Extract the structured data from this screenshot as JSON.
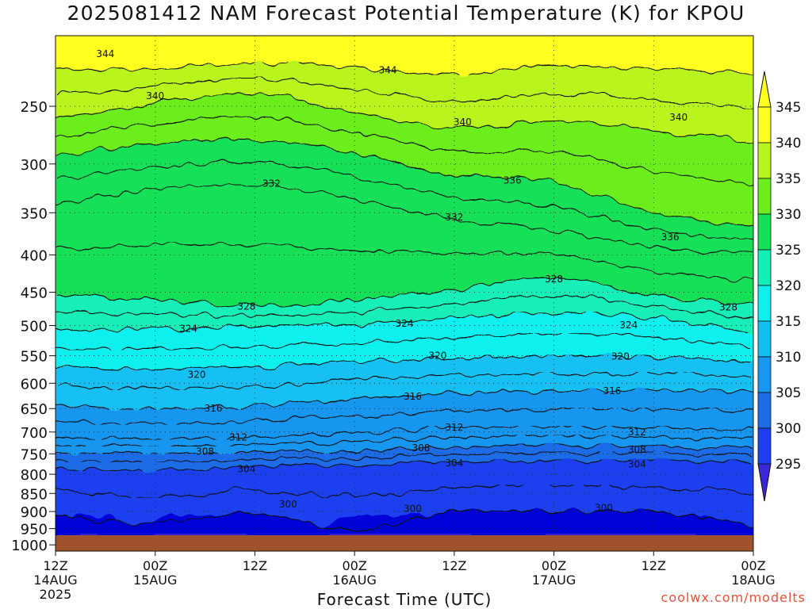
{
  "chart_data": {
    "type": "contour",
    "title": "2025081412 NAM Forecast Potential Temperature (K) for KPOU",
    "xlabel": "Forecast Time (UTC)",
    "ylabel": "",
    "y_scale": "log-pressure",
    "ylim": [
      1020,
      200
    ],
    "y_ticks": [
      250,
      300,
      350,
      400,
      450,
      500,
      550,
      600,
      650,
      700,
      750,
      800,
      850,
      900,
      950,
      1000
    ],
    "x_ticks": [
      {
        "hour": 0,
        "label": "12Z",
        "sub": "14AUG",
        "sub2": "2025"
      },
      {
        "hour": 12,
        "label": "00Z",
        "sub": "15AUG",
        "sub2": ""
      },
      {
        "hour": 24,
        "label": "12Z",
        "sub": "",
        "sub2": ""
      },
      {
        "hour": 36,
        "label": "00Z",
        "sub": "16AUG",
        "sub2": ""
      },
      {
        "hour": 48,
        "label": "12Z",
        "sub": "",
        "sub2": ""
      },
      {
        "hour": 60,
        "label": "00Z",
        "sub": "17AUG",
        "sub2": ""
      },
      {
        "hour": 72,
        "label": "12Z",
        "sub": "",
        "sub2": ""
      },
      {
        "hour": 84,
        "label": "00Z",
        "sub": "18AUG",
        "sub2": ""
      }
    ],
    "xlim_hours": [
      0,
      84
    ],
    "colorbar": {
      "levels": [
        295,
        300,
        305,
        310,
        315,
        320,
        325,
        330,
        335,
        340,
        345
      ],
      "colors": [
        "#0000d8",
        "#1d3ff0",
        "#1f6ce8",
        "#1996ee",
        "#13c0f2",
        "#0ff0ee",
        "#12f0b8",
        "#16e058",
        "#6ced1e",
        "#b9f51e",
        "#ffff20"
      ]
    },
    "series": [
      {
        "level": 344,
        "pressure_by_hour": [
          [
            0,
            223
          ],
          [
            12,
            222
          ],
          [
            24,
            218
          ],
          [
            36,
            221
          ],
          [
            48,
            226
          ],
          [
            60,
            220
          ],
          [
            72,
            222
          ],
          [
            84,
            225
          ]
        ]
      },
      {
        "level": 340,
        "pressure_by_hour": [
          [
            0,
            260
          ],
          [
            12,
            248
          ],
          [
            24,
            240
          ],
          [
            36,
            255
          ],
          [
            48,
            268
          ],
          [
            60,
            262
          ],
          [
            72,
            270
          ],
          [
            84,
            280
          ]
        ]
      },
      {
        "level": 336,
        "pressure_by_hour": [
          [
            0,
            292
          ],
          [
            12,
            282
          ],
          [
            24,
            278
          ],
          [
            36,
            290
          ],
          [
            48,
            310
          ],
          [
            60,
            318
          ],
          [
            72,
            350
          ],
          [
            84,
            365
          ]
        ]
      },
      {
        "level": 332,
        "pressure_by_hour": [
          [
            0,
            340
          ],
          [
            12,
            325
          ],
          [
            24,
            320
          ],
          [
            36,
            335
          ],
          [
            48,
            358
          ],
          [
            60,
            370
          ],
          [
            72,
            390
          ],
          [
            84,
            400
          ]
        ]
      },
      {
        "level": 328,
        "pressure_by_hour": [
          [
            0,
            455
          ],
          [
            12,
            460
          ],
          [
            24,
            470
          ],
          [
            36,
            462
          ],
          [
            48,
            445
          ],
          [
            60,
            430
          ],
          [
            72,
            455
          ],
          [
            84,
            470
          ]
        ]
      },
      {
        "level": 324,
        "pressure_by_hour": [
          [
            0,
            505
          ],
          [
            12,
            505
          ],
          [
            24,
            500
          ],
          [
            36,
            498
          ],
          [
            48,
            488
          ],
          [
            60,
            480
          ],
          [
            72,
            488
          ],
          [
            84,
            510
          ]
        ]
      },
      {
        "level": 320,
        "pressure_by_hour": [
          [
            0,
            570
          ],
          [
            12,
            575
          ],
          [
            24,
            570
          ],
          [
            36,
            560
          ],
          [
            48,
            555
          ],
          [
            60,
            550
          ],
          [
            72,
            552
          ],
          [
            84,
            560
          ]
        ]
      },
      {
        "level": 316,
        "pressure_by_hour": [
          [
            0,
            645
          ],
          [
            12,
            650
          ],
          [
            24,
            645
          ],
          [
            36,
            630
          ],
          [
            48,
            620
          ],
          [
            60,
            615
          ],
          [
            72,
            612
          ],
          [
            84,
            615
          ]
        ]
      },
      {
        "level": 312,
        "pressure_by_hour": [
          [
            0,
            712
          ],
          [
            12,
            715
          ],
          [
            24,
            712
          ],
          [
            36,
            702
          ],
          [
            48,
            690
          ],
          [
            60,
            688
          ],
          [
            72,
            690
          ],
          [
            84,
            695
          ]
        ]
      },
      {
        "level": 308,
        "pressure_by_hour": [
          [
            0,
            745
          ],
          [
            12,
            748
          ],
          [
            24,
            745
          ],
          [
            36,
            742
          ],
          [
            48,
            735
          ],
          [
            60,
            728
          ],
          [
            72,
            735
          ],
          [
            84,
            735
          ]
        ]
      },
      {
        "level": 304,
        "pressure_by_hour": [
          [
            0,
            785
          ],
          [
            12,
            790
          ],
          [
            24,
            780
          ],
          [
            36,
            775
          ],
          [
            48,
            770
          ],
          [
            60,
            765
          ],
          [
            72,
            768
          ],
          [
            84,
            770
          ]
        ]
      },
      {
        "level": 300,
        "pressure_by_hour": [
          [
            0,
            912
          ],
          [
            12,
            935
          ],
          [
            24,
            905
          ],
          [
            36,
            955
          ],
          [
            48,
            900
          ],
          [
            60,
            900
          ],
          [
            72,
            900
          ],
          [
            84,
            940
          ]
        ]
      }
    ],
    "contour_labels": [
      {
        "text": "344",
        "hour": 6,
        "p": 212
      },
      {
        "text": "344",
        "hour": 40,
        "p": 223
      },
      {
        "text": "340",
        "hour": 12,
        "p": 242
      },
      {
        "text": "340",
        "hour": 49,
        "p": 263
      },
      {
        "text": "340",
        "hour": 75,
        "p": 259
      },
      {
        "text": "336",
        "hour": 55,
        "p": 316
      },
      {
        "text": "336",
        "hour": 74,
        "p": 378
      },
      {
        "text": "332",
        "hour": 26,
        "p": 319
      },
      {
        "text": "332",
        "hour": 48,
        "p": 355
      },
      {
        "text": "328",
        "hour": 23,
        "p": 471
      },
      {
        "text": "328",
        "hour": 60,
        "p": 432
      },
      {
        "text": "328",
        "hour": 81,
        "p": 472
      },
      {
        "text": "324",
        "hour": 16,
        "p": 505
      },
      {
        "text": "324",
        "hour": 42,
        "p": 497
      },
      {
        "text": "324",
        "hour": 69,
        "p": 499
      },
      {
        "text": "320",
        "hour": 17,
        "p": 584
      },
      {
        "text": "320",
        "hour": 46,
        "p": 550
      },
      {
        "text": "320",
        "hour": 68,
        "p": 551
      },
      {
        "text": "316",
        "hour": 19,
        "p": 650
      },
      {
        "text": "316",
        "hour": 43,
        "p": 626
      },
      {
        "text": "316",
        "hour": 67,
        "p": 615
      },
      {
        "text": "312",
        "hour": 22,
        "p": 712
      },
      {
        "text": "312",
        "hour": 48,
        "p": 690
      },
      {
        "text": "312",
        "hour": 70,
        "p": 700
      },
      {
        "text": "308",
        "hour": 18,
        "p": 745
      },
      {
        "text": "308",
        "hour": 44,
        "p": 736
      },
      {
        "text": "308",
        "hour": 70,
        "p": 740
      },
      {
        "text": "304",
        "hour": 23,
        "p": 787
      },
      {
        "text": "304",
        "hour": 48,
        "p": 772
      },
      {
        "text": "304",
        "hour": 70,
        "p": 775
      },
      {
        "text": "300",
        "hour": 28,
        "p": 880
      },
      {
        "text": "300",
        "hour": 43,
        "p": 892
      },
      {
        "text": "300",
        "hour": 66,
        "p": 890
      }
    ],
    "grid": true,
    "legend": "right-colorbar"
  },
  "credit": "coolwx.com/modelts"
}
